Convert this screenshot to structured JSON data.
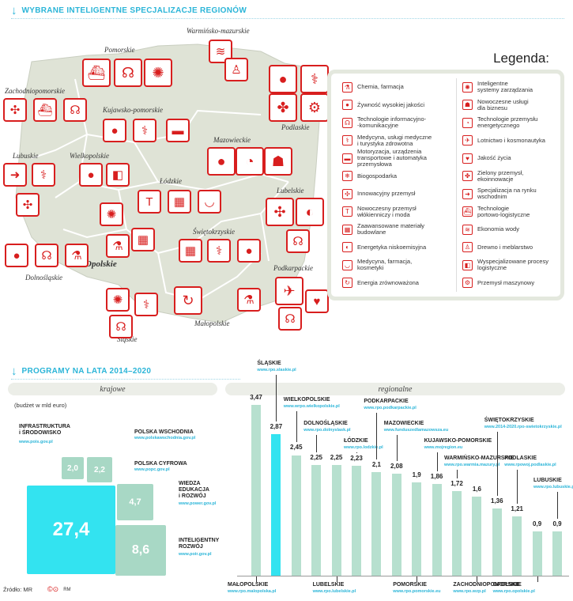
{
  "header_top": "WYBRANE INTELIGENTNE SPECJALIZACJE REGIONÓW",
  "legend": {
    "title": "Legenda:",
    "left": [
      {
        "label": "Chemia, farmacja",
        "icon": "flask-icon",
        "glyph": "⚗"
      },
      {
        "label": "Żywność wysokiej jakości",
        "icon": "cherries-icon",
        "glyph": "●"
      },
      {
        "label": "Technologie informacyjno-\n-komunikacyjne",
        "icon": "headset-icon",
        "glyph": "☊"
      },
      {
        "label": "Medycyna, usługi medyczne\ni turystyka zdrowotna",
        "icon": "caduceus-icon",
        "glyph": "⚕"
      },
      {
        "label": "Motoryzacja, urządzenia\ntransportowe i automatyka\nprzemysłowa",
        "icon": "car-icon",
        "glyph": "▬"
      },
      {
        "label": "Biogospodarka",
        "icon": "snowflake-icon",
        "glyph": "❄"
      },
      {
        "label": "Innowacyjny przemysł",
        "icon": "pinwheel-icon",
        "glyph": "✣"
      },
      {
        "label": "Nowoczesny przemysł\nwłókienniczy i moda",
        "icon": "shirt-icon",
        "glyph": "T"
      },
      {
        "label": "Zaawansowane materiały\nbudowlane",
        "icon": "bricks-icon",
        "glyph": "▦"
      },
      {
        "label": "Energetyka niskoemisyjna",
        "icon": "flame-icon",
        "glyph": "◐"
      },
      {
        "label": "Medycyna, farmacja,\nkosmetyki",
        "icon": "mortar-icon",
        "glyph": "◡"
      },
      {
        "label": "Energia zrównoważona",
        "icon": "recycle-icon",
        "glyph": "↻"
      }
    ],
    "right": [
      {
        "label": "Inteligentne\nsystemy zarządzania",
        "icon": "bulb-icon",
        "glyph": "✺"
      },
      {
        "label": "Nowoczesne usługi\ndla biznesu",
        "icon": "person-icon",
        "glyph": "☗"
      },
      {
        "label": "Technologie przemysłu\nenergetycznego",
        "icon": "chart-icon",
        "glyph": "◔"
      },
      {
        "label": "Lotnictwo i kosmonautyka",
        "icon": "plane-icon",
        "glyph": "✈"
      },
      {
        "label": "Jakość życia",
        "icon": "heart-icon",
        "glyph": "♥"
      },
      {
        "label": "Zielony przemysł,\nekoinnowacje",
        "icon": "maple-leaf-icon",
        "glyph": "✤"
      },
      {
        "label": "Specjalizacja na rynku\nwschodnim",
        "icon": "arrows-icon",
        "glyph": "➜"
      },
      {
        "label": "Technologie\nportowo-logistyczne",
        "icon": "ship-icon",
        "glyph": "⛴"
      },
      {
        "label": "Ekonomia wody",
        "icon": "waves-icon",
        "glyph": "≋"
      },
      {
        "label": "Drewno i meblarstwo",
        "icon": "chair-icon",
        "glyph": "♙"
      },
      {
        "label": "Wyspecjalizowane procesy\nlogistyczne",
        "icon": "cubes-icon",
        "glyph": "◧"
      },
      {
        "label": "Przemysł maszynowy",
        "icon": "gear-icon",
        "glyph": "⚙"
      }
    ]
  },
  "regions": [
    {
      "name": "Warmińsko-mazurskie",
      "icons": [
        {
          "icon": "waves-icon",
          "glyph": "≋"
        },
        {
          "icon": "chair-icon",
          "glyph": "♙"
        }
      ]
    },
    {
      "name": "Pomorskie",
      "icons": [
        {
          "icon": "ship-icon",
          "glyph": "⛴"
        },
        {
          "icon": "headset-icon",
          "glyph": "☊"
        },
        {
          "icon": "bulb-icon",
          "glyph": "✺"
        }
      ]
    },
    {
      "name": "Zachodniopomorskie",
      "icons": [
        {
          "icon": "pinwheel-icon",
          "glyph": "✣"
        },
        {
          "icon": "ship-icon",
          "glyph": "⛴"
        },
        {
          "icon": "headset-icon",
          "glyph": "☊"
        }
      ]
    },
    {
      "name": "Kujawsko-pomorskie",
      "icons": [
        {
          "icon": "cherries-icon",
          "glyph": "●"
        },
        {
          "icon": "caduceus-icon",
          "glyph": "⚕"
        },
        {
          "icon": "car-icon",
          "glyph": "▬"
        }
      ]
    },
    {
      "name": "Podlaskie",
      "icons": [
        {
          "icon": "cherries-icon",
          "glyph": "●"
        },
        {
          "icon": "caduceus-icon",
          "glyph": "⚕"
        },
        {
          "icon": "maple-leaf-icon",
          "glyph": "✤"
        },
        {
          "icon": "gear-icon",
          "glyph": "⚙"
        }
      ]
    },
    {
      "name": "Mazowieckie",
      "icons": [
        {
          "icon": "cherries-icon",
          "glyph": "●"
        },
        {
          "icon": "chart-icon",
          "glyph": "◔"
        },
        {
          "icon": "person-icon",
          "glyph": "☗"
        }
      ]
    },
    {
      "name": "Lubuskie",
      "icons": [
        {
          "icon": "arrows-icon",
          "glyph": "➜"
        },
        {
          "icon": "caduceus-icon",
          "glyph": "⚕"
        },
        {
          "icon": "pinwheel-icon",
          "glyph": "✣"
        }
      ]
    },
    {
      "name": "Wielkopolskie",
      "icons": [
        {
          "icon": "cubes-icon",
          "glyph": "◧"
        },
        {
          "icon": "cherries-icon",
          "glyph": "●"
        }
      ]
    },
    {
      "name": "Łódzkie",
      "icons": [
        {
          "icon": "shirt-icon",
          "glyph": "T"
        },
        {
          "icon": "bricks-icon",
          "glyph": "▦"
        },
        {
          "icon": "mortar-icon",
          "glyph": "◡"
        }
      ]
    },
    {
      "name": "Lubelskie",
      "icons": [
        {
          "icon": "pinwheel-icon",
          "glyph": "✣"
        },
        {
          "icon": "flame-icon",
          "glyph": "◐"
        },
        {
          "icon": "headset-icon",
          "glyph": "☊"
        }
      ]
    },
    {
      "name": "Opolskie",
      "icons": [
        {
          "icon": "bulb-icon",
          "glyph": "✺"
        },
        {
          "icon": "flask-icon",
          "glyph": "⚗"
        },
        {
          "icon": "bricks-icon",
          "glyph": "▦"
        }
      ]
    },
    {
      "name": "Dolnośląskie",
      "icons": [
        {
          "icon": "cherries-icon",
          "glyph": "●"
        },
        {
          "icon": "headset-icon",
          "glyph": "☊"
        },
        {
          "icon": "flask-icon",
          "glyph": "⚗"
        }
      ]
    },
    {
      "name": "Świętokrzyskie",
      "icons": [
        {
          "icon": "bricks-icon",
          "glyph": "▦"
        },
        {
          "icon": "caduceus-icon",
          "glyph": "⚕"
        },
        {
          "icon": "cherries-icon",
          "glyph": "●"
        }
      ]
    },
    {
      "name": "Podkarpackie",
      "icons": [
        {
          "icon": "plane-icon",
          "glyph": "✈"
        },
        {
          "icon": "heart-icon",
          "glyph": "♥"
        },
        {
          "icon": "headset-icon",
          "glyph": "☊"
        }
      ]
    },
    {
      "name": "Małopolskie",
      "icons": [
        {
          "icon": "recycle-icon",
          "glyph": "↻"
        },
        {
          "icon": "flask-icon",
          "glyph": "⚗"
        }
      ]
    },
    {
      "name": "Śląskie",
      "icons": [
        {
          "icon": "bulb-icon",
          "glyph": "✺"
        },
        {
          "icon": "caduceus-icon",
          "glyph": "⚕"
        },
        {
          "icon": "headset-icon",
          "glyph": "☊"
        }
      ]
    }
  ],
  "header_bottom": "PROGRAMY NA LATA 2014–2020",
  "krajowe_label": "krajowe",
  "regionalne_label": "regionalne",
  "budget_note": "(budżet w mld euro)",
  "source": "Źródło: MR",
  "author": "RM",
  "colors": {
    "accent": "#2bb5d8",
    "red": "#d81e1e",
    "national": "#a8d8c5",
    "regional_bar": "#b7e0cf",
    "highlight": "#33e3f0"
  },
  "chart_data": [
    {
      "type": "treemap",
      "items": [
        {
          "name": "INFRASTRUKTURA\ni ŚRODOWISKO",
          "url": "www.pois.gov.pl",
          "value": 27.4,
          "label": "27,4"
        },
        {
          "name": "POLSKA WSCHODNIA",
          "url": "www.polskawschodnia.gov.pl",
          "value": 2.0,
          "label": "2,0"
        },
        {
          "name": "POLSKA CYFROWA",
          "url": "www.popc.gov.pl",
          "value": 2.2,
          "label": "2,2"
        },
        {
          "name": "WIEDZA\nEDUKACJA\ni ROZWÓJ",
          "url": "www.power.gov.pl",
          "value": 4.7,
          "label": "4,7"
        },
        {
          "name": "INTELIGENTNY\nROZWÓJ",
          "url": "www.poir.gov.pl",
          "value": 8.6,
          "label": "8,6"
        }
      ]
    },
    {
      "type": "bar",
      "categories": [
        "MAŁOPOLSKIE",
        "ŚLĄSKIE",
        "WIELKOPOLSKIE",
        "DOLNOŚLĄSKIE",
        "LUBELSKIE",
        "ŁÓDZKIE",
        "PODKARPACKIE",
        "MAZOWIECKIE",
        "POMORSKIE",
        "KUJAWSKO-POMORSKIE",
        "WARMIŃSKO-MAZURSKIE",
        "ZACHODNIOPOMORSKIE",
        "ŚWIĘTOKRZYSKIE",
        "PODLASKIE",
        "OPOLSKIE",
        "LUBUSKIE"
      ],
      "values": [
        3.47,
        2.87,
        2.45,
        2.25,
        2.25,
        2.23,
        2.1,
        2.08,
        1.9,
        1.86,
        1.72,
        1.6,
        1.36,
        1.21,
        0.9,
        0.9
      ],
      "value_labels": [
        "3,47",
        "2,87",
        "2,45",
        "2,25",
        "2,25",
        "2,23",
        "2,1",
        "2,08",
        "1,9",
        "1,86",
        "1,72",
        "1,6",
        "1,36",
        "1,21",
        "0,9",
        "0,9"
      ],
      "urls": [
        "www.rpo.malopolska.pl",
        "www.rpo.slaskie.pl",
        "www.wrpo.wielkopolskie.pl",
        "www.rpo.dolnyslask.pl",
        "www.rpo.lubelskie.pl",
        "www.rpo.lodzkie.pl",
        "www.rpo.podkarpackie.pl",
        "www.funduszedlamazowsza.eu",
        "www.rpo.pomorskie.eu",
        "www.mojregion.eu",
        "www.rpo.warmia.mazury.pl",
        "www.rpo.wzp.pl",
        "www.2014-2020.rpo-swietokrzyskie.pl",
        "www.rpowoj.podlaskie.pl",
        "www.rpo.opolskie.pl",
        "www.rpo.lubuskie.pl"
      ],
      "label_position": [
        "bottom",
        "top",
        "top",
        "top",
        "bottom",
        "top",
        "top",
        "top",
        "bottom",
        "top",
        "top",
        "bottom",
        "top",
        "top",
        "bottom",
        "top"
      ],
      "highlight": "ŚLĄSKIE"
    }
  ]
}
